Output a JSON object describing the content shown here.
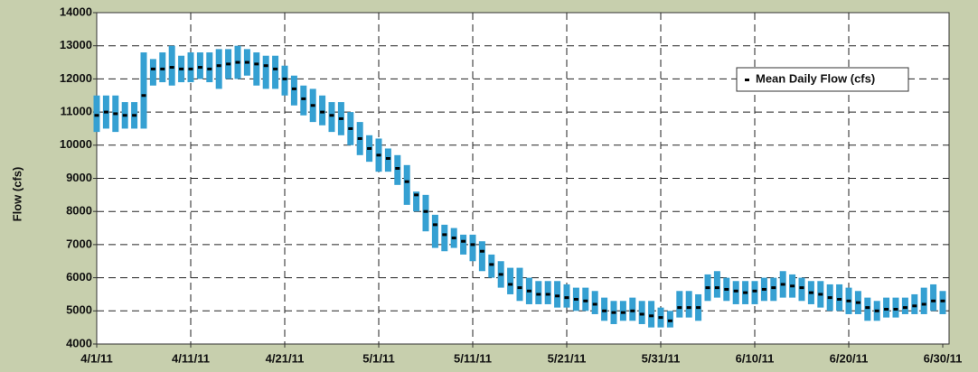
{
  "chart_data": {
    "type": "range",
    "y_label": "Flow (cfs)",
    "legend_label": "Mean Daily Flow (cfs)",
    "legend": "upper right",
    "grid": true,
    "bar_color": "#35a0d2",
    "mean_color": "#000000",
    "categories": [
      "4/1/11",
      null,
      null,
      null,
      null,
      null,
      null,
      null,
      null,
      null,
      "4/11/11",
      null,
      null,
      null,
      null,
      null,
      null,
      null,
      null,
      null,
      "4/21/11",
      null,
      null,
      null,
      null,
      null,
      null,
      null,
      null,
      null,
      "5/1/11",
      null,
      null,
      null,
      null,
      null,
      null,
      null,
      null,
      null,
      "5/11/11",
      null,
      null,
      null,
      null,
      null,
      null,
      null,
      null,
      null,
      "5/21/11",
      null,
      null,
      null,
      null,
      null,
      null,
      null,
      null,
      null,
      "5/31/11",
      null,
      null,
      null,
      null,
      null,
      null,
      null,
      null,
      null,
      "6/10/11",
      null,
      null,
      null,
      null,
      null,
      null,
      null,
      null,
      null,
      "6/20/11",
      null,
      null,
      null,
      null,
      null,
      null,
      null,
      null,
      null,
      "6/30/11"
    ],
    "min": [
      10400,
      10500,
      10400,
      10500,
      10500,
      10500,
      11800,
      11900,
      11800,
      11900,
      11900,
      12000,
      11900,
      11700,
      12000,
      12000,
      12100,
      11800,
      11700,
      11700,
      11500,
      11200,
      10900,
      10700,
      10600,
      10400,
      10300,
      10000,
      9700,
      9500,
      9200,
      9200,
      8800,
      8200,
      8000,
      7400,
      6900,
      6800,
      6900,
      6700,
      6500,
      6200,
      6000,
      5700,
      5500,
      5300,
      5200,
      5200,
      5200,
      5100,
      5100,
      5000,
      5000,
      4900,
      4700,
      4600,
      4700,
      4700,
      4600,
      4500,
      4500,
      4500,
      4800,
      4800,
      4700,
      5300,
      5400,
      5300,
      5200,
      5200,
      5200,
      5300,
      5300,
      5400,
      5400,
      5300,
      5200,
      5100,
      5000,
      5000,
      4900,
      4900,
      4700,
      4700,
      4800,
      4800,
      4900,
      4900,
      4900,
      5000,
      4900
    ],
    "max": [
      11500,
      11500,
      11500,
      11300,
      11300,
      12800,
      12600,
      12800,
      13000,
      12700,
      12800,
      12800,
      12800,
      12900,
      12900,
      13000,
      12900,
      12800,
      12700,
      12700,
      12400,
      12100,
      11800,
      11700,
      11500,
      11300,
      11300,
      11000,
      10700,
      10300,
      10200,
      9900,
      9700,
      9400,
      8600,
      8500,
      7900,
      7600,
      7500,
      7300,
      7300,
      7100,
      6700,
      6500,
      6300,
      6300,
      6000,
      5900,
      5900,
      5900,
      5800,
      5700,
      5700,
      5600,
      5400,
      5300,
      5300,
      5400,
      5300,
      5300,
      5100,
      5000,
      5600,
      5600,
      5500,
      6100,
      6200,
      6000,
      5900,
      5900,
      5900,
      6000,
      6000,
      6200,
      6100,
      6000,
      5900,
      5900,
      5800,
      5800,
      5700,
      5600,
      5400,
      5300,
      5400,
      5400,
      5400,
      5500,
      5700,
      5800,
      5600
    ],
    "mean": [
      10900,
      11000,
      10950,
      10900,
      10900,
      11500,
      12300,
      12300,
      12350,
      12300,
      12300,
      12350,
      12300,
      12400,
      12450,
      12500,
      12500,
      12450,
      12400,
      12300,
      12000,
      11700,
      11400,
      11200,
      11000,
      10900,
      10800,
      10500,
      10200,
      9900,
      9700,
      9600,
      9300,
      8900,
      8500,
      8000,
      7600,
      7300,
      7200,
      7100,
      7000,
      6800,
      6400,
      6100,
      5800,
      5700,
      5600,
      5500,
      5500,
      5450,
      5400,
      5350,
      5300,
      5200,
      5000,
      4950,
      4950,
      5000,
      4900,
      4850,
      4800,
      4700,
      5100,
      5100,
      5100,
      5700,
      5700,
      5650,
      5600,
      5550,
      5600,
      5650,
      5700,
      5800,
      5750,
      5700,
      5550,
      5500,
      5400,
      5350,
      5300,
      5250,
      5100,
      5000,
      5050,
      5050,
      5100,
      5150,
      5200,
      5300,
      5300
    ],
    "ylim": [
      4000,
      14000
    ],
    "yticks": [
      4000,
      5000,
      6000,
      7000,
      8000,
      9000,
      10000,
      11000,
      12000,
      13000,
      14000
    ]
  }
}
